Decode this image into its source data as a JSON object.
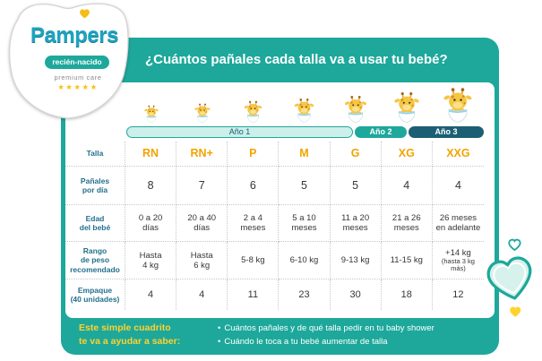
{
  "colors": {
    "teal": "#1da89b",
    "teal_light": "#ccefe9",
    "year3": "#1c5f75",
    "size_label": "#f2a400",
    "row_label": "#23708c",
    "footer_highlight": "#ffd22e"
  },
  "logo": {
    "brand": "Pampers",
    "product_line": "recién-nacido",
    "tagline": "premium care",
    "stars": "★★★★★",
    "icon": "heart-icon"
  },
  "title": "¿Cuántos pañales cada talla va a usar tu bebé?",
  "years": [
    {
      "label": "Año 1"
    },
    {
      "label": "Año 2"
    },
    {
      "label": "Año 3"
    }
  ],
  "table": {
    "column_icon": "giraffe-baby-icon",
    "row_labels": {
      "size": "Talla",
      "diapers_per_day": "Pañales\npor día",
      "baby_age": "Edad\ndel bebé",
      "weight_range": "Rango\nde peso\nrecomendado",
      "packs": "Empaque\n(40 unidades)"
    },
    "columns": [
      {
        "size": "RN",
        "diapers_per_day": 8,
        "baby_age": "0 a 20\ndías",
        "weight_range": "Hasta\n4 kg",
        "packs": 4
      },
      {
        "size": "RN+",
        "diapers_per_day": 7,
        "baby_age": "20 a 40\ndías",
        "weight_range": "Hasta\n6 kg",
        "packs": 4
      },
      {
        "size": "P",
        "diapers_per_day": 6,
        "baby_age": "2 a 4\nmeses",
        "weight_range": "5-8 kg",
        "packs": 11
      },
      {
        "size": "M",
        "diapers_per_day": 5,
        "baby_age": "5 a 10\nmeses",
        "weight_range": "6-10 kg",
        "packs": 23
      },
      {
        "size": "G",
        "diapers_per_day": 5,
        "baby_age": "11 a 20\nmeses",
        "weight_range": "9-13 kg",
        "packs": 30
      },
      {
        "size": "XG",
        "diapers_per_day": 4,
        "baby_age": "21 a 26\nmeses",
        "weight_range": "11-15 kg",
        "packs": 18
      },
      {
        "size": "XXG",
        "diapers_per_day": 4,
        "baby_age": "26 meses\nen adelante",
        "weight_range": "+14 kg",
        "weight_note": "(hasta 3 kg\nmás)",
        "packs": 12
      }
    ]
  },
  "footer": {
    "intro": "Este simple cuadrito\nte va a ayudar a saber:",
    "bullets": [
      "Cuántos pañales y de qué talla pedir en tu baby shower",
      "Cuándo le toca a tu bebé aumentar de talla"
    ]
  },
  "decorations": {
    "icons": [
      "heart-outline-icon",
      "heart-icon"
    ]
  }
}
